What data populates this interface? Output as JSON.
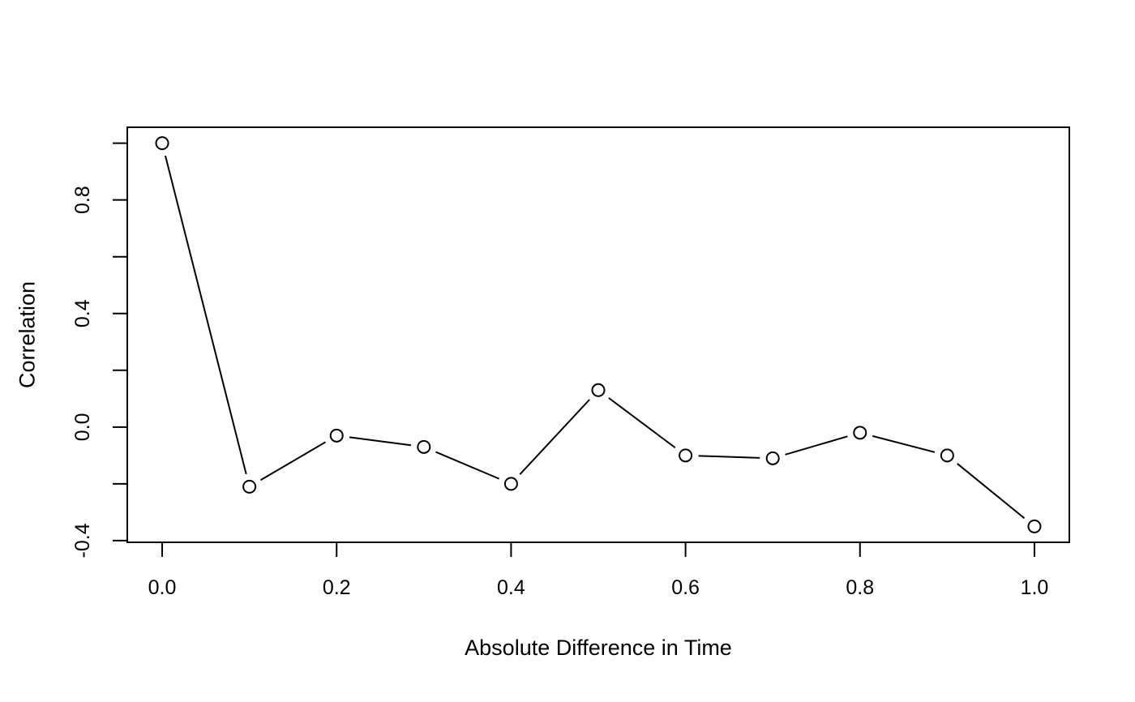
{
  "page": {
    "background_color": "#ffffff"
  },
  "chart_data": {
    "type": "line",
    "title": "",
    "xlabel": "Absolute Difference in Time",
    "ylabel": "Correlation",
    "x": [
      0.0,
      0.1,
      0.2,
      0.3,
      0.4,
      0.5,
      0.6,
      0.7,
      0.8,
      0.9,
      1.0
    ],
    "y": [
      1.0,
      -0.21,
      -0.03,
      -0.07,
      -0.2,
      0.13,
      -0.1,
      -0.11,
      -0.02,
      -0.1,
      -0.35
    ],
    "marker": "open-circle",
    "line_style": "solid",
    "points_and_lines": "R type=b (segments with gaps around markers)",
    "grid": "off",
    "legend": "none",
    "xlim": [
      -0.04,
      1.04
    ],
    "ylim": [
      -0.406,
      1.056
    ],
    "x_axis": {
      "ticks": [
        0.0,
        0.2,
        0.4,
        0.6,
        0.8,
        1.0
      ],
      "tick_labels": [
        "0.0",
        "0.2",
        "0.4",
        "0.6",
        "0.8",
        "1.0"
      ]
    },
    "y_axis": {
      "ticks": [
        -0.4,
        -0.2,
        0.0,
        0.2,
        0.4,
        0.6,
        0.8,
        1.0
      ],
      "tick_labels": [
        "-0.4",
        "",
        "0.0",
        "",
        "0.4",
        "",
        "0.8",
        ""
      ],
      "tick_label_rotation_deg": -90
    },
    "colors": {
      "line": "#000000",
      "marker_stroke": "#000000",
      "marker_fill": "#ffffff",
      "axis": "#000000",
      "text": "#000000",
      "background": "#ffffff"
    }
  }
}
